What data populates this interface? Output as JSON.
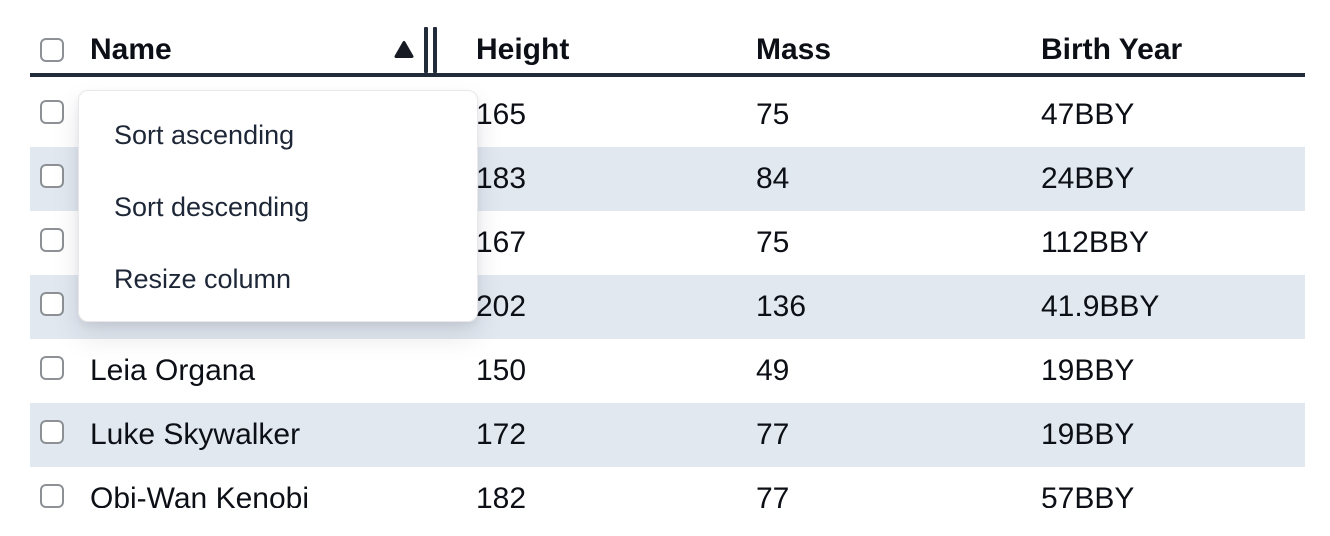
{
  "table": {
    "columns": [
      {
        "key": "name",
        "label": "Name"
      },
      {
        "key": "height",
        "label": "Height"
      },
      {
        "key": "mass",
        "label": "Mass"
      },
      {
        "key": "birth_year",
        "label": "Birth Year"
      }
    ],
    "sort": {
      "column": "Name",
      "direction": "ascending",
      "indicator_icon": "triangle-up-icon"
    },
    "rows": [
      {
        "name": "",
        "height": "165",
        "mass": "75",
        "birth_year": "47BBY",
        "selected": false
      },
      {
        "name": "",
        "height": "183",
        "mass": "84",
        "birth_year": "24BBY",
        "selected": false
      },
      {
        "name": "",
        "height": "167",
        "mass": "75",
        "birth_year": "112BBY",
        "selected": false
      },
      {
        "name": "",
        "height": "202",
        "mass": "136",
        "birth_year": "41.9BBY",
        "selected": false
      },
      {
        "name": "Leia Organa",
        "height": "150",
        "mass": "49",
        "birth_year": "19BBY",
        "selected": false
      },
      {
        "name": "Luke Skywalker",
        "height": "172",
        "mass": "77",
        "birth_year": "19BBY",
        "selected": false
      },
      {
        "name": "Obi-Wan Kenobi",
        "height": "182",
        "mass": "77",
        "birth_year": "57BBY",
        "selected": false
      }
    ]
  },
  "menu": {
    "items": [
      {
        "label": "Sort ascending"
      },
      {
        "label": "Sort descending"
      },
      {
        "label": "Resize column"
      }
    ]
  },
  "colors": {
    "row_stripe": "#e2e8f0",
    "header_border": "#212b3a",
    "text": "#0c0f15",
    "menu_text": "#1e2737",
    "checkbox_border": "#8d9196"
  }
}
